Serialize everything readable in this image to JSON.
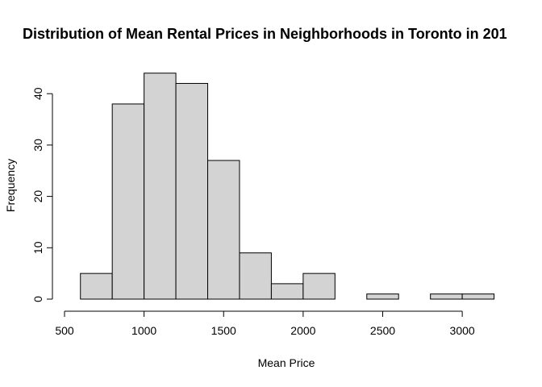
{
  "chart_data": {
    "type": "histogram",
    "title": "Distribution of Mean Rental Prices in Neighborhoods in Toronto in 201",
    "xlabel": "Mean Price",
    "ylabel": "Frequency",
    "bin_width": 200,
    "bins": [
      {
        "start": 600,
        "end": 800,
        "count": 5
      },
      {
        "start": 800,
        "end": 1000,
        "count": 38
      },
      {
        "start": 1000,
        "end": 1200,
        "count": 44
      },
      {
        "start": 1200,
        "end": 1400,
        "count": 42
      },
      {
        "start": 1400,
        "end": 1600,
        "count": 27
      },
      {
        "start": 1600,
        "end": 1800,
        "count": 9
      },
      {
        "start": 1800,
        "end": 2000,
        "count": 3
      },
      {
        "start": 2000,
        "end": 2200,
        "count": 5
      },
      {
        "start": 2200,
        "end": 2400,
        "count": 0
      },
      {
        "start": 2400,
        "end": 2600,
        "count": 1
      },
      {
        "start": 2600,
        "end": 2800,
        "count": 0
      },
      {
        "start": 2800,
        "end": 3000,
        "count": 1
      },
      {
        "start": 3000,
        "end": 3200,
        "count": 1
      }
    ],
    "xlim": [
      500,
      3200
    ],
    "ylim": [
      0,
      44
    ],
    "x_ticks": [
      "500",
      "1000",
      "1500",
      "2000",
      "2500",
      "3000"
    ],
    "y_ticks": [
      "0",
      "10",
      "20",
      "30",
      "40"
    ],
    "bar_fill": "#d3d3d3",
    "bar_stroke": "#000000",
    "grid": false,
    "legend": "none"
  }
}
